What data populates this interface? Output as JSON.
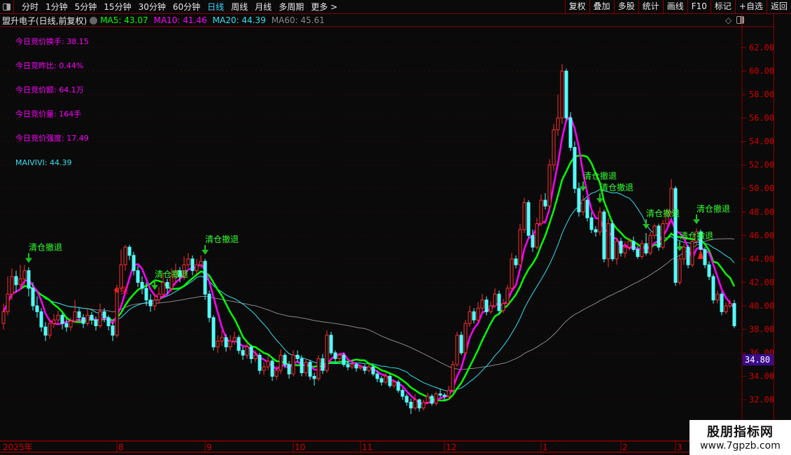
{
  "toolbar": {
    "tabs": [
      "分时",
      "1分钟",
      "5分钟",
      "15分钟",
      "30分钟",
      "60分钟",
      "日线",
      "周线",
      "月线",
      "多周期",
      "更多 >"
    ],
    "active": "日线",
    "right_buttons": [
      "复权",
      "叠加",
      "多股",
      "统计",
      "画线",
      "F10",
      "标记",
      "+自选",
      "返回"
    ]
  },
  "title": {
    "name": "盟升电子(日线,前复权)",
    "ma5": "MA5: 43.07",
    "ma10": "MA10: 41.46",
    "ma20": "MA20: 44.39",
    "ma60": "MA60: 45.61"
  },
  "indicators": [
    "今日竞价换手: 38.15",
    "今日竞昨比: 0.44%",
    "今日竞价额: 64.1万",
    "今日竞价量: 164手",
    "今日竞价强度: 17.49"
  ],
  "maivivi": "MAIVIVI: 44.39",
  "price_tag": "34.80",
  "watermark": {
    "line1": "股朋指标网",
    "line2": "www.7gpzb.com"
  },
  "colors": {
    "up": "#ff3030",
    "down": "#54fcfc",
    "ma5": "#ff00ff",
    "ma10": "#00ff00",
    "ma20": "#33e0f0",
    "ma60": "#888888",
    "axis": "#d00000",
    "signal": "#33ff33"
  },
  "chart_data": {
    "type": "candlestick",
    "ylim": [
      30.5,
      63.5
    ],
    "yticks": [
      "62.00",
      "60.00",
      "58.00",
      "56.00",
      "54.00",
      "52.00",
      "50.00",
      "48.00",
      "46.00",
      "44.00",
      "42.00",
      "40.00",
      "38.00",
      "36.00",
      "34.00",
      "32.00"
    ],
    "xlabels": [
      {
        "label": "2025年",
        "index": 0
      },
      {
        "label": "8",
        "index": 27
      },
      {
        "label": "9",
        "index": 48
      },
      {
        "label": "10",
        "index": 69
      },
      {
        "label": "11",
        "index": 85
      },
      {
        "label": "12",
        "index": 105
      },
      {
        "label": "1",
        "index": 128
      },
      {
        "label": "2",
        "index": 147
      },
      {
        "label": "3",
        "index": 160
      }
    ],
    "signal_label": "清仓撤退",
    "signals": [
      6,
      36,
      48,
      138,
      142,
      153,
      161,
      165
    ],
    "buy_label": "★买",
    "buy_index": 28,
    "ohlc": [
      [
        38.5,
        40.2,
        38.0,
        39.5
      ],
      [
        39.5,
        42.5,
        39.2,
        41.0
      ],
      [
        41.0,
        43.2,
        40.5,
        42.5
      ],
      [
        42.5,
        43.0,
        41.2,
        41.8
      ],
      [
        41.8,
        43.5,
        41.5,
        42.3
      ],
      [
        42.3,
        43.5,
        41.8,
        43.0
      ],
      [
        43.0,
        43.3,
        40.8,
        41.5
      ],
      [
        41.5,
        42.0,
        39.6,
        40.0
      ],
      [
        40.0,
        40.8,
        39.0,
        39.5
      ],
      [
        39.5,
        39.8,
        37.8,
        38.2
      ],
      [
        38.2,
        38.6,
        37.0,
        37.5
      ],
      [
        37.5,
        38.9,
        37.2,
        38.5
      ],
      [
        38.5,
        39.3,
        38.1,
        38.8
      ],
      [
        38.8,
        39.6,
        38.4,
        39.2
      ],
      [
        39.2,
        39.4,
        38.0,
        38.5
      ],
      [
        38.5,
        38.9,
        37.8,
        38.2
      ],
      [
        38.2,
        39.0,
        37.9,
        38.7
      ],
      [
        38.7,
        40.5,
        38.5,
        39.5
      ],
      [
        39.5,
        39.8,
        38.7,
        39.0
      ],
      [
        39.0,
        39.3,
        38.1,
        38.5
      ],
      [
        38.5,
        39.8,
        38.3,
        39.2
      ],
      [
        39.2,
        39.5,
        38.4,
        38.8
      ],
      [
        38.8,
        39.1,
        37.9,
        38.3
      ],
      [
        38.3,
        40.2,
        38.1,
        39.5
      ],
      [
        39.5,
        39.8,
        38.6,
        39.0
      ],
      [
        39.0,
        39.2,
        37.9,
        38.3
      ],
      [
        38.3,
        38.6,
        37.0,
        37.5
      ],
      [
        37.5,
        41.8,
        37.3,
        41.5
      ],
      [
        41.5,
        44.8,
        41.2,
        43.5
      ],
      [
        43.5,
        45.2,
        43.0,
        45.0
      ],
      [
        45.0,
        45.2,
        43.9,
        44.3
      ],
      [
        44.3,
        44.6,
        42.6,
        43.0
      ],
      [
        43.0,
        43.4,
        41.6,
        42.0
      ],
      [
        42.0,
        42.5,
        41.0,
        41.5
      ],
      [
        41.5,
        42.0,
        40.0,
        40.5
      ],
      [
        40.5,
        41.0,
        39.5,
        40.0
      ],
      [
        40.0,
        41.0,
        39.6,
        40.5
      ],
      [
        40.5,
        41.6,
        40.2,
        41.0
      ],
      [
        41.0,
        42.8,
        40.7,
        42.0
      ],
      [
        42.0,
        42.3,
        41.0,
        41.5
      ],
      [
        41.5,
        43.2,
        41.2,
        42.5
      ],
      [
        42.5,
        43.6,
        42.0,
        43.0
      ],
      [
        43.0,
        43.3,
        42.0,
        42.5
      ],
      [
        42.5,
        44.2,
        42.2,
        43.5
      ],
      [
        43.5,
        44.5,
        43.2,
        44.0
      ],
      [
        44.0,
        44.3,
        42.6,
        43.0
      ],
      [
        43.0,
        44.0,
        42.7,
        43.5
      ],
      [
        43.5,
        44.3,
        43.2,
        43.8
      ],
      [
        43.8,
        44.0,
        40.5,
        41.0
      ],
      [
        41.0,
        41.3,
        38.6,
        39.0
      ],
      [
        39.0,
        39.2,
        36.2,
        36.5
      ],
      [
        36.5,
        37.5,
        36.0,
        37.0
      ],
      [
        37.0,
        37.9,
        36.6,
        37.3
      ],
      [
        37.3,
        37.6,
        36.1,
        36.5
      ],
      [
        36.5,
        37.5,
        36.2,
        37.0
      ],
      [
        37.0,
        37.8,
        36.7,
        37.3
      ],
      [
        37.3,
        37.5,
        35.9,
        36.2
      ],
      [
        36.2,
        36.5,
        35.4,
        35.8
      ],
      [
        35.8,
        36.9,
        35.5,
        36.5
      ],
      [
        36.5,
        36.7,
        35.1,
        35.5
      ],
      [
        35.5,
        36.2,
        35.2,
        35.8
      ],
      [
        35.8,
        36.0,
        34.2,
        34.5
      ],
      [
        34.5,
        35.2,
        34.1,
        34.8
      ],
      [
        34.8,
        35.8,
        34.5,
        35.3
      ],
      [
        35.3,
        35.5,
        33.6,
        34.0
      ],
      [
        34.0,
        34.9,
        33.7,
        34.5
      ],
      [
        34.5,
        36.3,
        34.2,
        35.8
      ],
      [
        35.8,
        36.0,
        34.7,
        35.0
      ],
      [
        35.0,
        35.3,
        33.8,
        34.2
      ],
      [
        34.2,
        36.2,
        34.0,
        35.8
      ],
      [
        35.8,
        36.2,
        35.2,
        35.5
      ],
      [
        35.5,
        35.8,
        34.0,
        34.3
      ],
      [
        34.3,
        35.5,
        34.0,
        35.2
      ],
      [
        35.2,
        35.4,
        33.7,
        34.0
      ],
      [
        34.0,
        34.3,
        33.2,
        33.8
      ],
      [
        33.8,
        35.8,
        33.6,
        35.5
      ],
      [
        35.5,
        35.9,
        34.2,
        34.5
      ],
      [
        34.5,
        37.9,
        34.3,
        37.5
      ],
      [
        37.5,
        37.8,
        35.8,
        36.0
      ],
      [
        36.0,
        36.2,
        35.2,
        35.5
      ],
      [
        35.5,
        36.0,
        35.2,
        35.8
      ],
      [
        35.8,
        36.0,
        34.8,
        35.0
      ],
      [
        35.0,
        35.3,
        34.5,
        34.8
      ],
      [
        34.8,
        35.3,
        34.6,
        35.0
      ],
      [
        35.0,
        35.2,
        34.4,
        34.7
      ],
      [
        34.7,
        35.0,
        34.5,
        34.8
      ],
      [
        34.8,
        35.0,
        34.2,
        34.5
      ],
      [
        34.5,
        35.0,
        34.3,
        34.8
      ],
      [
        34.8,
        35.0,
        34.0,
        34.2
      ],
      [
        34.2,
        34.5,
        33.5,
        33.8
      ],
      [
        33.8,
        34.0,
        33.2,
        33.5
      ],
      [
        33.5,
        34.3,
        33.3,
        34.0
      ],
      [
        34.0,
        34.2,
        33.0,
        33.2
      ],
      [
        33.2,
        33.7,
        33.0,
        33.5
      ],
      [
        33.5,
        33.7,
        32.6,
        32.8
      ],
      [
        32.8,
        33.0,
        32.0,
        32.3
      ],
      [
        32.3,
        32.5,
        31.5,
        31.8
      ],
      [
        31.8,
        32.1,
        30.8,
        31.3
      ],
      [
        31.3,
        32.5,
        31.1,
        32.0
      ],
      [
        32.0,
        32.1,
        31.0,
        31.3
      ],
      [
        31.3,
        32.0,
        31.1,
        31.8
      ],
      [
        31.8,
        32.6,
        31.6,
        32.3
      ],
      [
        32.3,
        32.5,
        31.5,
        31.7
      ],
      [
        31.7,
        32.7,
        31.5,
        32.5
      ],
      [
        32.5,
        32.9,
        32.2,
        32.4
      ],
      [
        32.4,
        32.6,
        31.9,
        32.3
      ],
      [
        32.3,
        33.2,
        32.0,
        32.8
      ],
      [
        32.8,
        35.3,
        32.6,
        35.0
      ],
      [
        35.0,
        37.8,
        34.8,
        37.5
      ],
      [
        37.5,
        37.8,
        35.8,
        36.0
      ],
      [
        36.0,
        38.8,
        35.8,
        38.5
      ],
      [
        38.5,
        40.0,
        38.2,
        39.5
      ],
      [
        39.5,
        39.8,
        38.5,
        38.8
      ],
      [
        38.8,
        40.3,
        38.6,
        39.8
      ],
      [
        39.8,
        41.0,
        39.5,
        40.5
      ],
      [
        40.5,
        40.8,
        39.2,
        39.5
      ],
      [
        39.5,
        40.4,
        39.3,
        40.0
      ],
      [
        40.0,
        41.5,
        39.8,
        41.0
      ],
      [
        41.0,
        41.3,
        39.3,
        39.6
      ],
      [
        39.6,
        40.6,
        39.4,
        40.2
      ],
      [
        40.2,
        41.8,
        40.0,
        41.5
      ],
      [
        41.5,
        44.5,
        41.3,
        44.0
      ],
      [
        44.0,
        44.3,
        43.2,
        43.5
      ],
      [
        43.5,
        47.0,
        43.3,
        46.5
      ],
      [
        46.5,
        49.2,
        46.2,
        48.8
      ],
      [
        48.8,
        49.0,
        45.8,
        46.0
      ],
      [
        46.0,
        46.5,
        44.6,
        45.0
      ],
      [
        45.0,
        47.5,
        44.8,
        47.0
      ],
      [
        47.0,
        49.5,
        46.8,
        49.0
      ],
      [
        49.0,
        49.6,
        48.2,
        48.5
      ],
      [
        48.5,
        52.5,
        48.2,
        52.0
      ],
      [
        52.0,
        55.5,
        51.5,
        55.0
      ],
      [
        55.0,
        58.0,
        54.5,
        56.0
      ],
      [
        56.0,
        60.6,
        55.5,
        60.0
      ],
      [
        60.0,
        60.2,
        55.8,
        56.0
      ],
      [
        56.0,
        56.5,
        53.2,
        53.5
      ],
      [
        53.5,
        54.0,
        49.6,
        50.0
      ],
      [
        50.0,
        50.5,
        47.6,
        48.0
      ],
      [
        48.0,
        49.4,
        47.7,
        49.0
      ],
      [
        49.0,
        49.2,
        47.2,
        47.5
      ],
      [
        47.5,
        48.0,
        46.2,
        46.5
      ],
      [
        46.5,
        46.8,
        45.9,
        46.3
      ],
      [
        46.3,
        48.4,
        46.0,
        48.0
      ],
      [
        48.0,
        48.2,
        43.7,
        44.0
      ],
      [
        44.0,
        47.5,
        43.3,
        47.0
      ],
      [
        47.0,
        47.3,
        43.8,
        44.0
      ],
      [
        44.0,
        45.8,
        43.5,
        45.5
      ],
      [
        45.5,
        45.8,
        44.2,
        44.5
      ],
      [
        44.5,
        45.5,
        44.1,
        45.0
      ],
      [
        45.0,
        45.8,
        44.7,
        45.5
      ],
      [
        45.5,
        45.9,
        44.6,
        44.8
      ],
      [
        44.8,
        45.1,
        44.0,
        44.2
      ],
      [
        44.2,
        45.6,
        44.0,
        45.3
      ],
      [
        45.3,
        46.2,
        44.3,
        44.5
      ],
      [
        44.5,
        46.3,
        44.3,
        46.0
      ],
      [
        46.0,
        47.0,
        45.7,
        46.8
      ],
      [
        46.8,
        47.0,
        44.7,
        45.0
      ],
      [
        45.0,
        47.3,
        44.8,
        47.0
      ],
      [
        47.0,
        48.3,
        46.8,
        48.0
      ],
      [
        48.0,
        50.8,
        47.7,
        50.0
      ],
      [
        50.0,
        50.2,
        41.7,
        42.0
      ],
      [
        42.0,
        44.3,
        41.8,
        44.0
      ],
      [
        44.0,
        45.3,
        43.5,
        45.0
      ],
      [
        45.0,
        45.2,
        43.2,
        43.5
      ],
      [
        43.5,
        45.8,
        43.3,
        45.5
      ],
      [
        45.5,
        46.6,
        45.2,
        46.3
      ],
      [
        46.3,
        46.5,
        44.5,
        44.8
      ],
      [
        44.8,
        45.0,
        43.2,
        43.5
      ],
      [
        43.5,
        43.8,
        42.2,
        42.5
      ],
      [
        42.5,
        42.7,
        40.2,
        40.5
      ],
      [
        40.5,
        41.3,
        40.2,
        41.0
      ],
      [
        41.0,
        41.2,
        39.2,
        39.5
      ],
      [
        39.5,
        40.3,
        39.3,
        40.0
      ],
      [
        40.0,
        40.5,
        39.8,
        40.2
      ],
      [
        40.2,
        40.5,
        38.1,
        38.3
      ]
    ]
  }
}
